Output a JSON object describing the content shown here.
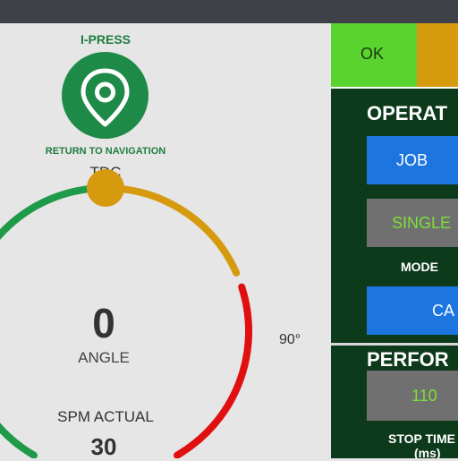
{
  "brand": {
    "title": "I-PRESS",
    "navigation_label": "RETURN TO NAVIGATION"
  },
  "gauge": {
    "top_label": "TDC",
    "value": "0",
    "name": "ANGLE",
    "right_label": "90°",
    "colors": {
      "green": "#1f9a48",
      "amber": "#d69a0f",
      "red": "#e01010",
      "knob": "#d69a0f"
    }
  },
  "spm": {
    "label": "SPM ACTUAL",
    "value": "30"
  },
  "status": {
    "ok_label": "OK",
    "ok_color": "#5ad32e",
    "warn_color": "#d69a0f"
  },
  "operation": {
    "title": "OPERAT",
    "job_button": "JOB",
    "mode_value": "SINGLE",
    "mode_label": "MODE",
    "cam_button": "CA"
  },
  "performance": {
    "title": "PERFOR",
    "stop_time_value": "110",
    "stop_time_label_1": "STOP TIME",
    "stop_time_label_2": "(ms)"
  }
}
